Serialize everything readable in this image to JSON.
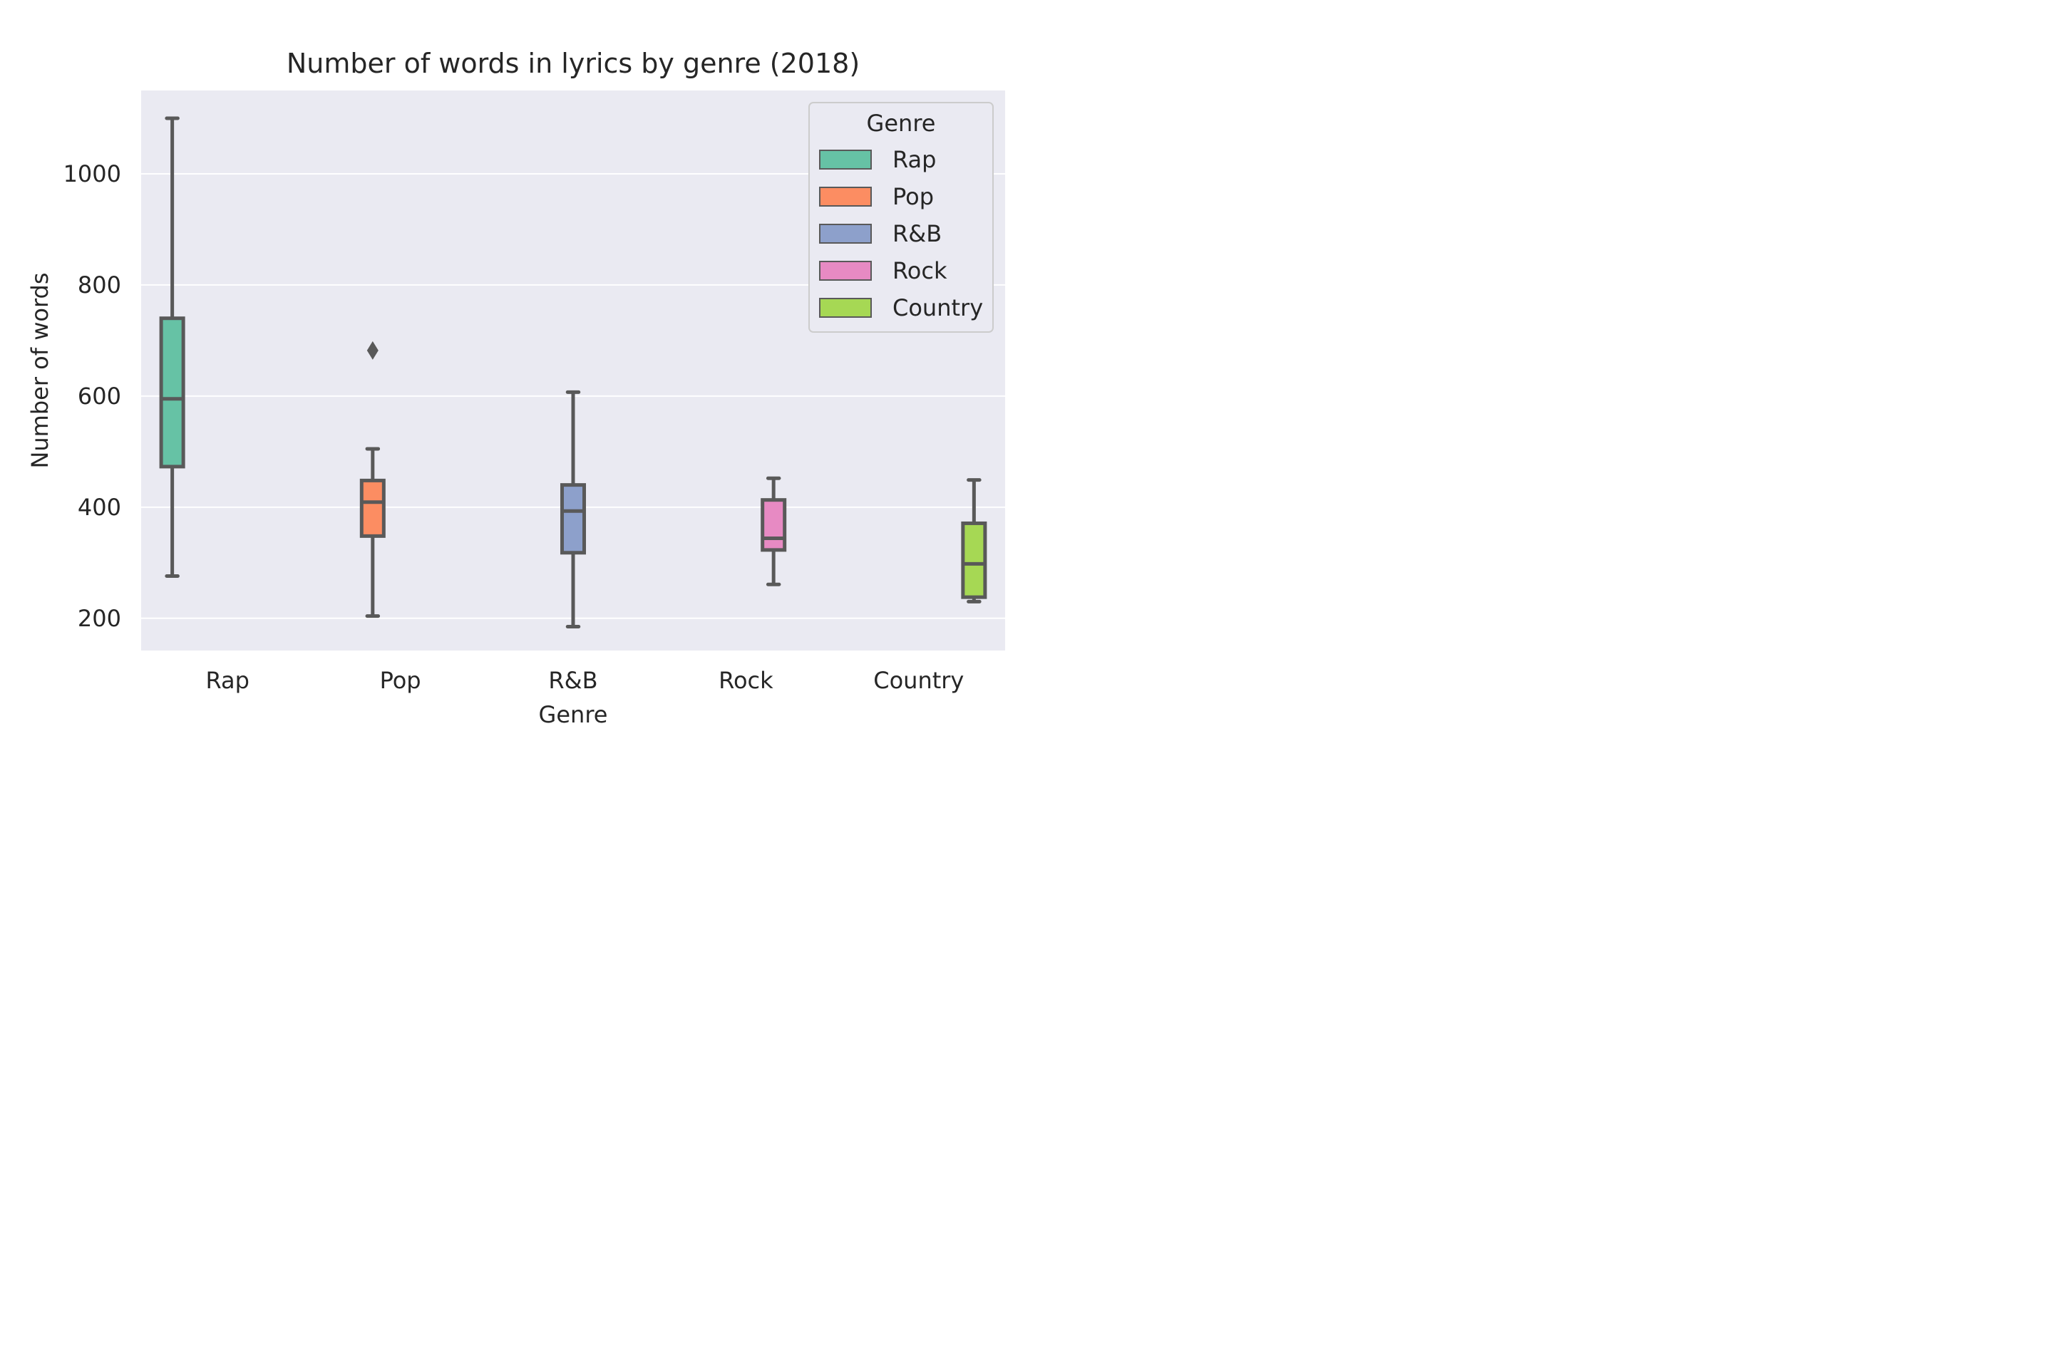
{
  "chart_data": {
    "type": "box",
    "title": "Number of words in lyrics by genre (2018)",
    "xlabel": "Genre",
    "ylabel": "Number of words",
    "ylim": [
      142,
      1150
    ],
    "yticks": [
      200,
      400,
      600,
      800,
      1000
    ],
    "grid": true,
    "legend_placement": "top-right",
    "legend_title": "Genre",
    "categories": [
      "Rap",
      "Pop",
      "R&B",
      "Rock",
      "Country"
    ],
    "colors": {
      "Rap": "#66c2a5",
      "Pop": "#fc8d62",
      "R&B": "#8da0cb",
      "Rock": "#e78ac3",
      "Country": "#a6d854",
      "box_edge": "#595959",
      "plot_bg": "#eaeaf2",
      "grid": "#ffffff"
    },
    "series": [
      {
        "name": "Rap",
        "category_index": 0,
        "whisker_low": 276,
        "q1": 473,
        "median": 595,
        "q3": 740,
        "whisker_high": 1100,
        "outliers": []
      },
      {
        "name": "Pop",
        "category_index": 1,
        "whisker_low": 204,
        "q1": 348,
        "median": 409,
        "q3": 448,
        "whisker_high": 505,
        "outliers": [
          682
        ]
      },
      {
        "name": "R&B",
        "category_index": 2,
        "whisker_low": 185,
        "q1": 318,
        "median": 393,
        "q3": 440,
        "whisker_high": 607,
        "outliers": []
      },
      {
        "name": "Rock",
        "category_index": 3,
        "whisker_low": 261,
        "q1": 323,
        "median": 344,
        "q3": 413,
        "whisker_high": 452,
        "outliers": []
      },
      {
        "name": "Country",
        "category_index": 4,
        "whisker_low": 230,
        "q1": 238,
        "median": 298,
        "q3": 371,
        "whisker_high": 449,
        "outliers": []
      }
    ]
  }
}
